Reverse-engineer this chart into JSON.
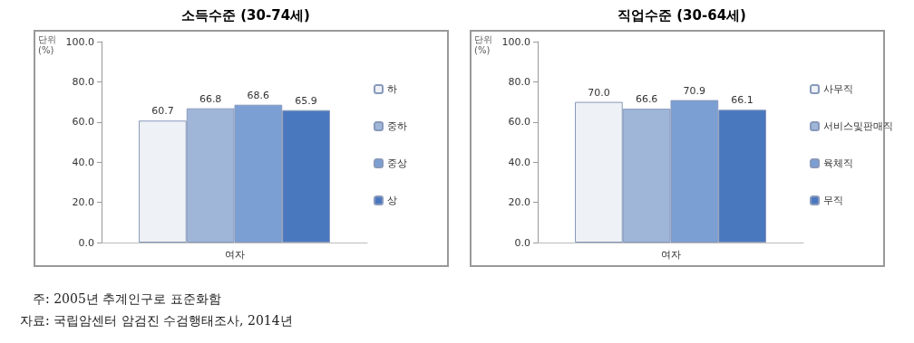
{
  "chart_data": [
    {
      "type": "bar",
      "title": "소득수준 (30-74세)",
      "ylabel": "단위\n(%)",
      "categories": [
        "여자"
      ],
      "series": [
        {
          "name": "하",
          "color": "#eef1f6",
          "values": [
            60.7
          ],
          "value_labels": [
            "60.7"
          ]
        },
        {
          "name": "중하",
          "color": "#9fb6d9",
          "values": [
            66.8
          ],
          "value_labels": [
            "66.8"
          ]
        },
        {
          "name": "중상",
          "color": "#7b9fd3",
          "values": [
            68.6
          ],
          "value_labels": [
            "68.6"
          ]
        },
        {
          "name": "상",
          "color": "#4a78bf",
          "values": [
            65.9
          ],
          "value_labels": [
            "65.9"
          ]
        }
      ],
      "ylim": [
        0,
        100
      ],
      "yticks": [
        {
          "value": 0,
          "label": "0.0"
        },
        {
          "value": 20,
          "label": "20.0"
        },
        {
          "value": 40,
          "label": "40.0"
        },
        {
          "value": 60,
          "label": "60.0"
        },
        {
          "value": 80,
          "label": "80.0"
        },
        {
          "value": 100,
          "label": "100.0"
        }
      ],
      "grid": false,
      "legend": "right",
      "annotations": [
        "주: 2005년 추계인구로 표준화함",
        "자료: 국립암센터 암검진 수검행태조사, 2014년"
      ]
    },
    {
      "type": "bar",
      "title": "직업수준 (30-64세)",
      "ylabel": "단위\n(%)",
      "categories": [
        "여자"
      ],
      "series": [
        {
          "name": "사무직",
          "color": "#eef1f6",
          "values": [
            70.0
          ],
          "value_labels": [
            "70.0"
          ]
        },
        {
          "name": "서비스및판매직",
          "color": "#9fb6d9",
          "values": [
            66.6
          ],
          "value_labels": [
            "66.6"
          ]
        },
        {
          "name": "육체직",
          "color": "#7b9fd3",
          "values": [
            70.9
          ],
          "value_labels": [
            "70.9"
          ]
        },
        {
          "name": "무직",
          "color": "#4a78bf",
          "values": [
            66.1
          ],
          "value_labels": [
            "66.1"
          ]
        }
      ],
      "ylim": [
        0,
        100
      ],
      "yticks": [
        {
          "value": 0,
          "label": "0.0"
        },
        {
          "value": 20,
          "label": "20.0"
        },
        {
          "value": 40,
          "label": "40.0"
        },
        {
          "value": 60,
          "label": "60.0"
        },
        {
          "value": 80,
          "label": "80.0"
        },
        {
          "value": 100,
          "label": "100.0"
        }
      ],
      "grid": false,
      "legend": "right"
    }
  ]
}
